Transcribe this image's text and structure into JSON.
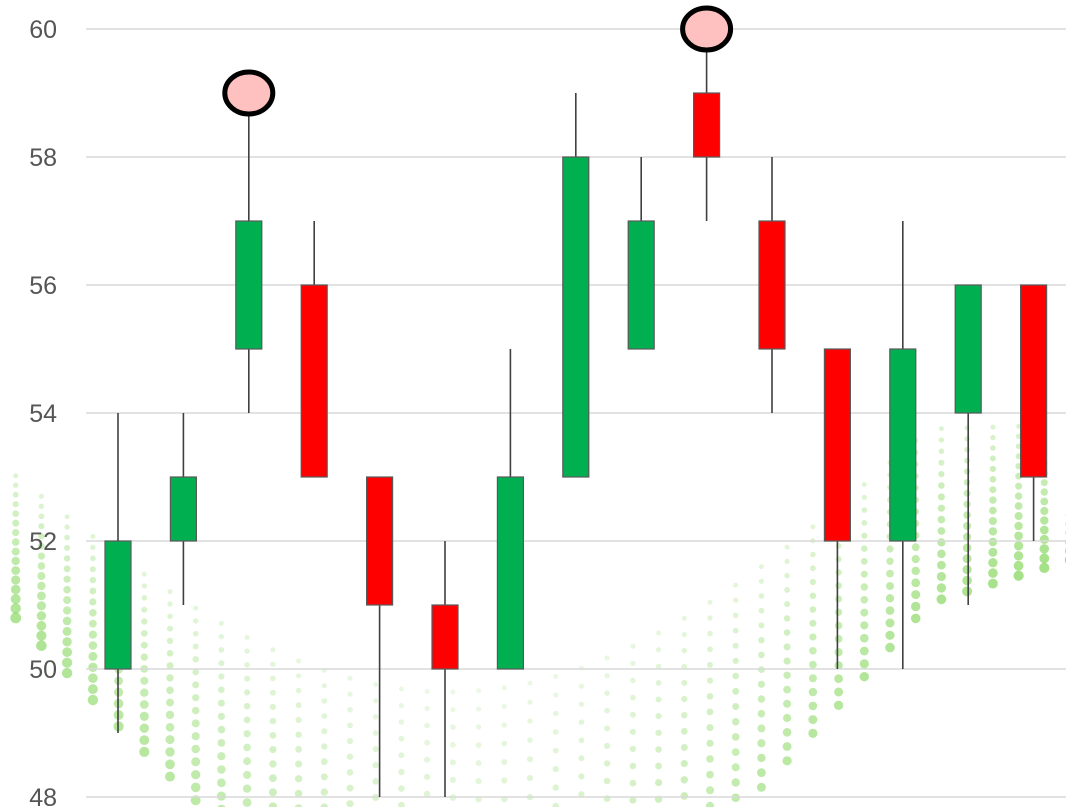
{
  "chart_data": {
    "type": "candlestick",
    "ylim": [
      48,
      60
    ],
    "y_ticks": [
      "48",
      "50",
      "52",
      "54",
      "56",
      "58",
      "60"
    ],
    "grid": true,
    "up_color": "#00b050",
    "down_color": "#ff0000",
    "highlight_fill": "#ffc0c0",
    "candles": [
      {
        "open": 50,
        "close": 52,
        "high": 54,
        "low": 49
      },
      {
        "open": 52,
        "close": 53,
        "high": 54,
        "low": 51
      },
      {
        "open": 55,
        "close": 57,
        "high": 59,
        "low": 54,
        "highlight": true
      },
      {
        "open": 56,
        "close": 53,
        "high": 57,
        "low": 53
      },
      {
        "open": 53,
        "close": 51,
        "high": 53,
        "low": 48
      },
      {
        "open": 51,
        "close": 50,
        "high": 52,
        "low": 48
      },
      {
        "open": 50,
        "close": 53,
        "high": 55,
        "low": 50
      },
      {
        "open": 53,
        "close": 58,
        "high": 59,
        "low": 53
      },
      {
        "open": 55,
        "close": 57,
        "high": 58,
        "low": 55
      },
      {
        "open": 59,
        "close": 58,
        "high": 60,
        "low": 57,
        "highlight": true
      },
      {
        "open": 57,
        "close": 55,
        "high": 58,
        "low": 54
      },
      {
        "open": 55,
        "close": 52,
        "high": 55,
        "low": 50
      },
      {
        "open": 52,
        "close": 55,
        "high": 57,
        "low": 50
      },
      {
        "open": 54,
        "close": 56,
        "high": 56,
        "low": 51
      },
      {
        "open": 56,
        "close": 53,
        "high": 56,
        "low": 52
      }
    ]
  }
}
